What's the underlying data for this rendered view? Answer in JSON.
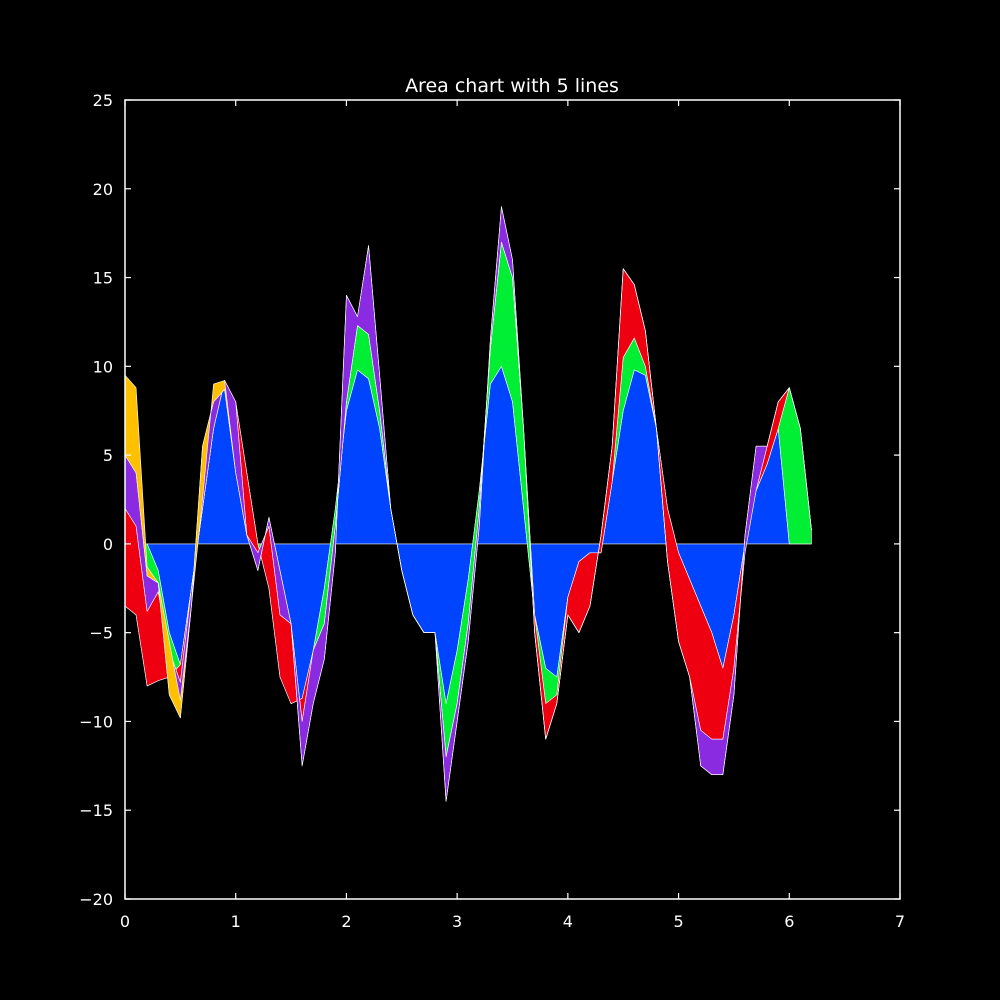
{
  "chart_data": {
    "type": "area",
    "title": "Area chart with 5 lines",
    "xlabel": "",
    "ylabel": "",
    "xlim": [
      0,
      7
    ],
    "ylim": [
      -20,
      25
    ],
    "xticks": [
      0,
      1,
      2,
      3,
      4,
      5,
      6,
      7
    ],
    "yticks": [
      -20,
      -15,
      -10,
      -5,
      0,
      5,
      10,
      15,
      20,
      25
    ],
    "grid": false,
    "legend": "none",
    "background": "#000000",
    "axes_color": "#ffffff",
    "x": [
      0,
      0.1,
      0.2,
      0.3,
      0.4,
      0.5,
      0.6,
      0.7,
      0.8,
      0.9,
      1.0,
      1.1,
      1.2,
      1.3,
      1.4,
      1.5,
      1.6,
      1.7,
      1.8,
      1.9,
      2.0,
      2.1,
      2.2,
      2.3,
      2.4,
      2.5,
      2.6,
      2.7,
      2.8,
      2.9,
      3.0,
      3.1,
      3.2,
      3.3,
      3.4,
      3.5,
      3.6,
      3.7,
      3.8,
      3.9,
      4.0,
      4.1,
      4.2,
      4.3,
      4.4,
      4.5,
      4.6,
      4.7,
      4.8,
      4.9,
      5.0,
      5.1,
      5.2,
      5.3,
      5.4,
      5.5,
      5.6,
      5.7,
      5.8,
      5.9,
      6.0,
      6.1,
      6.2
    ],
    "series": [
      {
        "color": "#0044ff",
        "values": [
          0,
          0,
          0,
          -1.5,
          -5.0,
          -6.8,
          -2.5,
          2.0,
          6.5,
          9.2,
          7.5,
          4.0,
          0,
          0,
          -2.0,
          -6.5,
          -9.5,
          -6.0,
          -2.5,
          2.0,
          7.5,
          9.8,
          9.3,
          6.5,
          2.0,
          -1.5,
          -4.0,
          -5.0,
          -5.0,
          -9.0,
          -6.0,
          -2.0,
          3.0,
          9.0,
          10.0,
          8.0,
          2.0,
          -4.0,
          -7.0,
          -7.5,
          -3.0,
          -1.0,
          -0.5,
          -0.5,
          3.5,
          7.5,
          9.8,
          9.5,
          6.5,
          2.0,
          -0.5,
          -2.0,
          -3.5,
          -5.0,
          -7.0,
          -4.0,
          0,
          3.0,
          4.5,
          6.5,
          0,
          0,
          0
        ]
      },
      {
        "color": "#00ee33",
        "values": [
          -3.5,
          -4.0,
          -8.0,
          -6.2,
          -2.5,
          0,
          0,
          0,
          0,
          0,
          0.5,
          0,
          0,
          -2.5,
          -5.5,
          -2.5,
          0.8,
          0,
          -2.0,
          -1.0,
          0.5,
          2.5,
          2.5,
          1.0,
          0,
          0,
          0,
          0,
          0,
          -3.0,
          -3.0,
          -2.5,
          -1.0,
          2.0,
          7.0,
          7.0,
          4.5,
          0,
          -2.0,
          -1.0,
          0,
          0,
          0,
          0,
          0,
          3.0,
          1.8,
          0.5,
          0,
          0,
          0,
          0,
          0,
          0,
          0,
          0,
          0,
          0,
          0,
          0,
          8.8,
          6.5,
          0.8
        ]
      },
      {
        "color": "#ee0011",
        "values": [
          5.5,
          5.0,
          4.2,
          5.0,
          1.5,
          -1.0,
          0,
          0,
          0,
          0,
          0,
          -3.5,
          -0.5,
          3.5,
          3.5,
          4.5,
          -1.3,
          0,
          0,
          0,
          0,
          0,
          0,
          0,
          0,
          0,
          0,
          0,
          0,
          0,
          0,
          0,
          0,
          0,
          0,
          0,
          0,
          -1.0,
          -2.0,
          -0.5,
          -1.0,
          -4.0,
          -3.0,
          1.0,
          2.0,
          5.0,
          3.0,
          2.0,
          0,
          -3.0,
          -5.0,
          -5.5,
          -7.0,
          -6.0,
          -4.0,
          -3.0,
          -0.5,
          0,
          1.0,
          1.5,
          0,
          0,
          0
        ]
      },
      {
        "color": "#8a2be2",
        "values": [
          3.0,
          3.0,
          2.0,
          0.5,
          -2.5,
          -2.0,
          -1.0,
          3.5,
          1.5,
          -0.5,
          -4.0,
          0,
          -1.0,
          0.5,
          2.5,
          0,
          -2.5,
          -3.0,
          -2.0,
          -1.5,
          6.0,
          0.5,
          5.0,
          2.0,
          0,
          0,
          0,
          0,
          0,
          -2.5,
          -1.0,
          -1.0,
          -1.0,
          0.5,
          2.0,
          1.0,
          0,
          0,
          0,
          0,
          0,
          0,
          0,
          0,
          0,
          0,
          0,
          0,
          0,
          0,
          0,
          0,
          -2.0,
          -2.0,
          -2.0,
          -1.5,
          1.0,
          2.5,
          0,
          0,
          0,
          0,
          0
        ]
      },
      {
        "color": "#ffc000",
        "values": [
          4.5,
          4.8,
          0.5,
          0,
          3.0,
          1.0,
          0,
          -3.0,
          1.0,
          0.5,
          0,
          0,
          0,
          0,
          0,
          0,
          0,
          0,
          0,
          0,
          0,
          0,
          0,
          0,
          0,
          0,
          0,
          0,
          0,
          0,
          0,
          0,
          0,
          0,
          0,
          0,
          0,
          0,
          0,
          0,
          0,
          0,
          0,
          0,
          0,
          0,
          0,
          0,
          0,
          0,
          0,
          0,
          0,
          0,
          0,
          0,
          0,
          0,
          0,
          0,
          0,
          0,
          0
        ]
      }
    ]
  }
}
